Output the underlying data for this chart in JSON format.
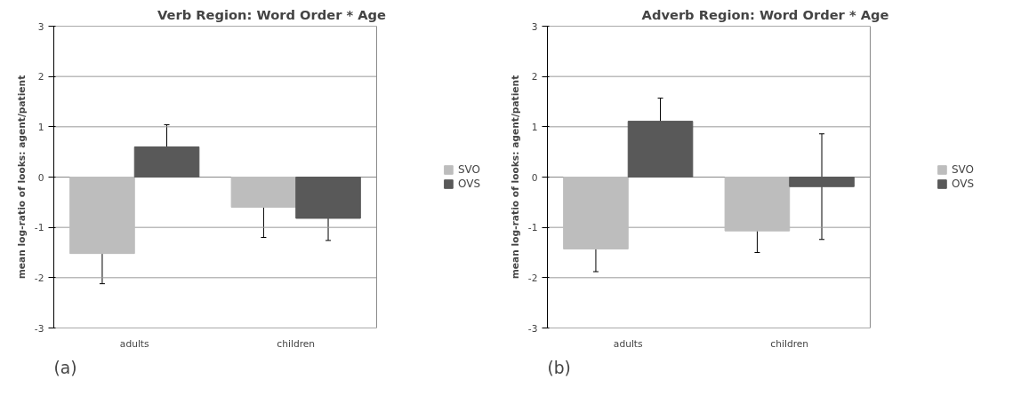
{
  "chart_data": [
    {
      "type": "bar",
      "title": "Verb Region: Word Order * Age",
      "ylabel": "mean log-ratio of looks: agent/patient",
      "categories": [
        "adults",
        "children"
      ],
      "ylim": [
        -3,
        3
      ],
      "yticks": [
        -3,
        -2,
        -1,
        0,
        1,
        2,
        3
      ],
      "grid": "y",
      "legend": "right",
      "annotations": [
        "(a)"
      ],
      "series": [
        {
          "name": "SVO",
          "color": "#bdbdbd",
          "values": [
            -1.52,
            -0.6
          ],
          "errors": [
            0.6,
            0.6
          ]
        },
        {
          "name": "OVS",
          "color": "#595959",
          "values": [
            0.6,
            -0.82
          ],
          "errors": [
            0.44,
            0.44
          ]
        }
      ]
    },
    {
      "type": "bar",
      "title": "Adverb Region: Word Order * Age",
      "ylabel": "mean log-ratio of looks: agent/patient",
      "categories": [
        "adults",
        "children"
      ],
      "ylim": [
        -3,
        3
      ],
      "yticks": [
        -3,
        -2,
        -1,
        0,
        1,
        2,
        3
      ],
      "grid": "y",
      "legend": "right",
      "annotations": [
        "(b)"
      ],
      "series": [
        {
          "name": "SVO",
          "color": "#bdbdbd",
          "values": [
            -1.43,
            -1.07
          ],
          "errors": [
            0.45,
            0.43
          ]
        },
        {
          "name": "OVS",
          "color": "#595959",
          "values": [
            1.11,
            -0.19
          ],
          "errors": [
            0.46,
            1.05
          ]
        }
      ]
    }
  ]
}
